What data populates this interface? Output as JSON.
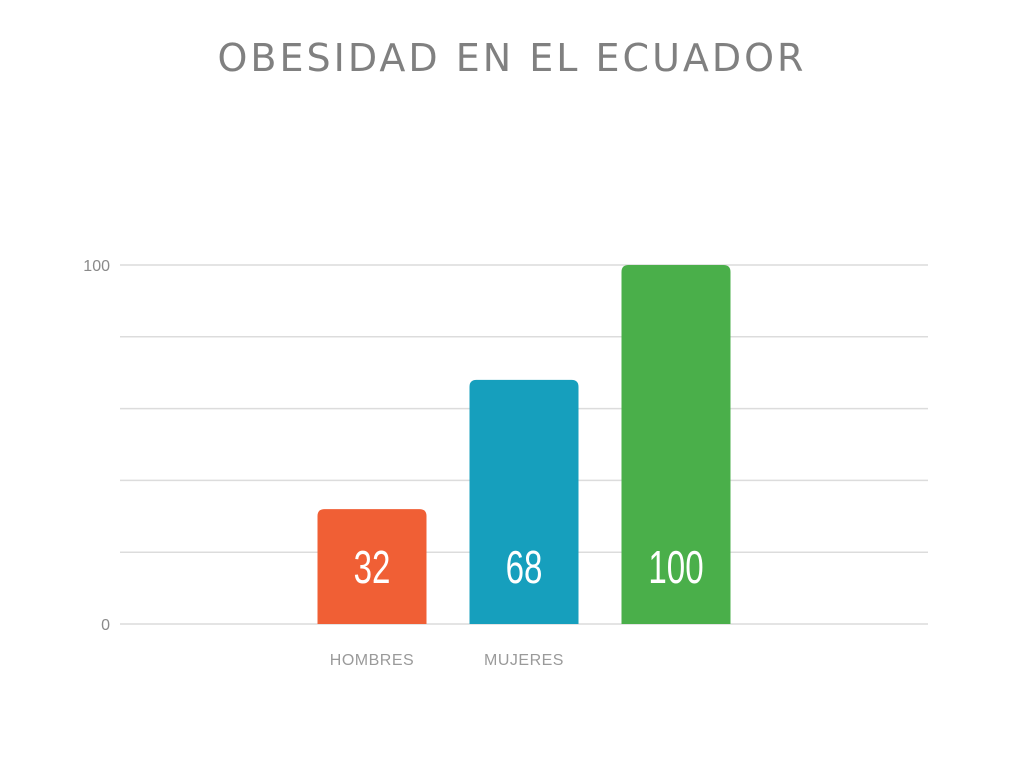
{
  "chart_data": {
    "type": "bar",
    "title": "OBESIDAD EN EL ECUADOR",
    "categories": [
      "HOMBRES",
      "MUJERES",
      ""
    ],
    "values": [
      32,
      68,
      100
    ],
    "data_labels": [
      "32",
      "68",
      "100"
    ],
    "colors": [
      "#f05f35",
      "#169fbd",
      "#4aaf4a"
    ],
    "ylim": [
      0,
      100
    ],
    "yticks": [
      0,
      100
    ],
    "ytick_labels": [
      "0",
      "100"
    ],
    "gridlines": 5,
    "grid": true,
    "legend": "none",
    "xlabel": "",
    "ylabel": ""
  }
}
